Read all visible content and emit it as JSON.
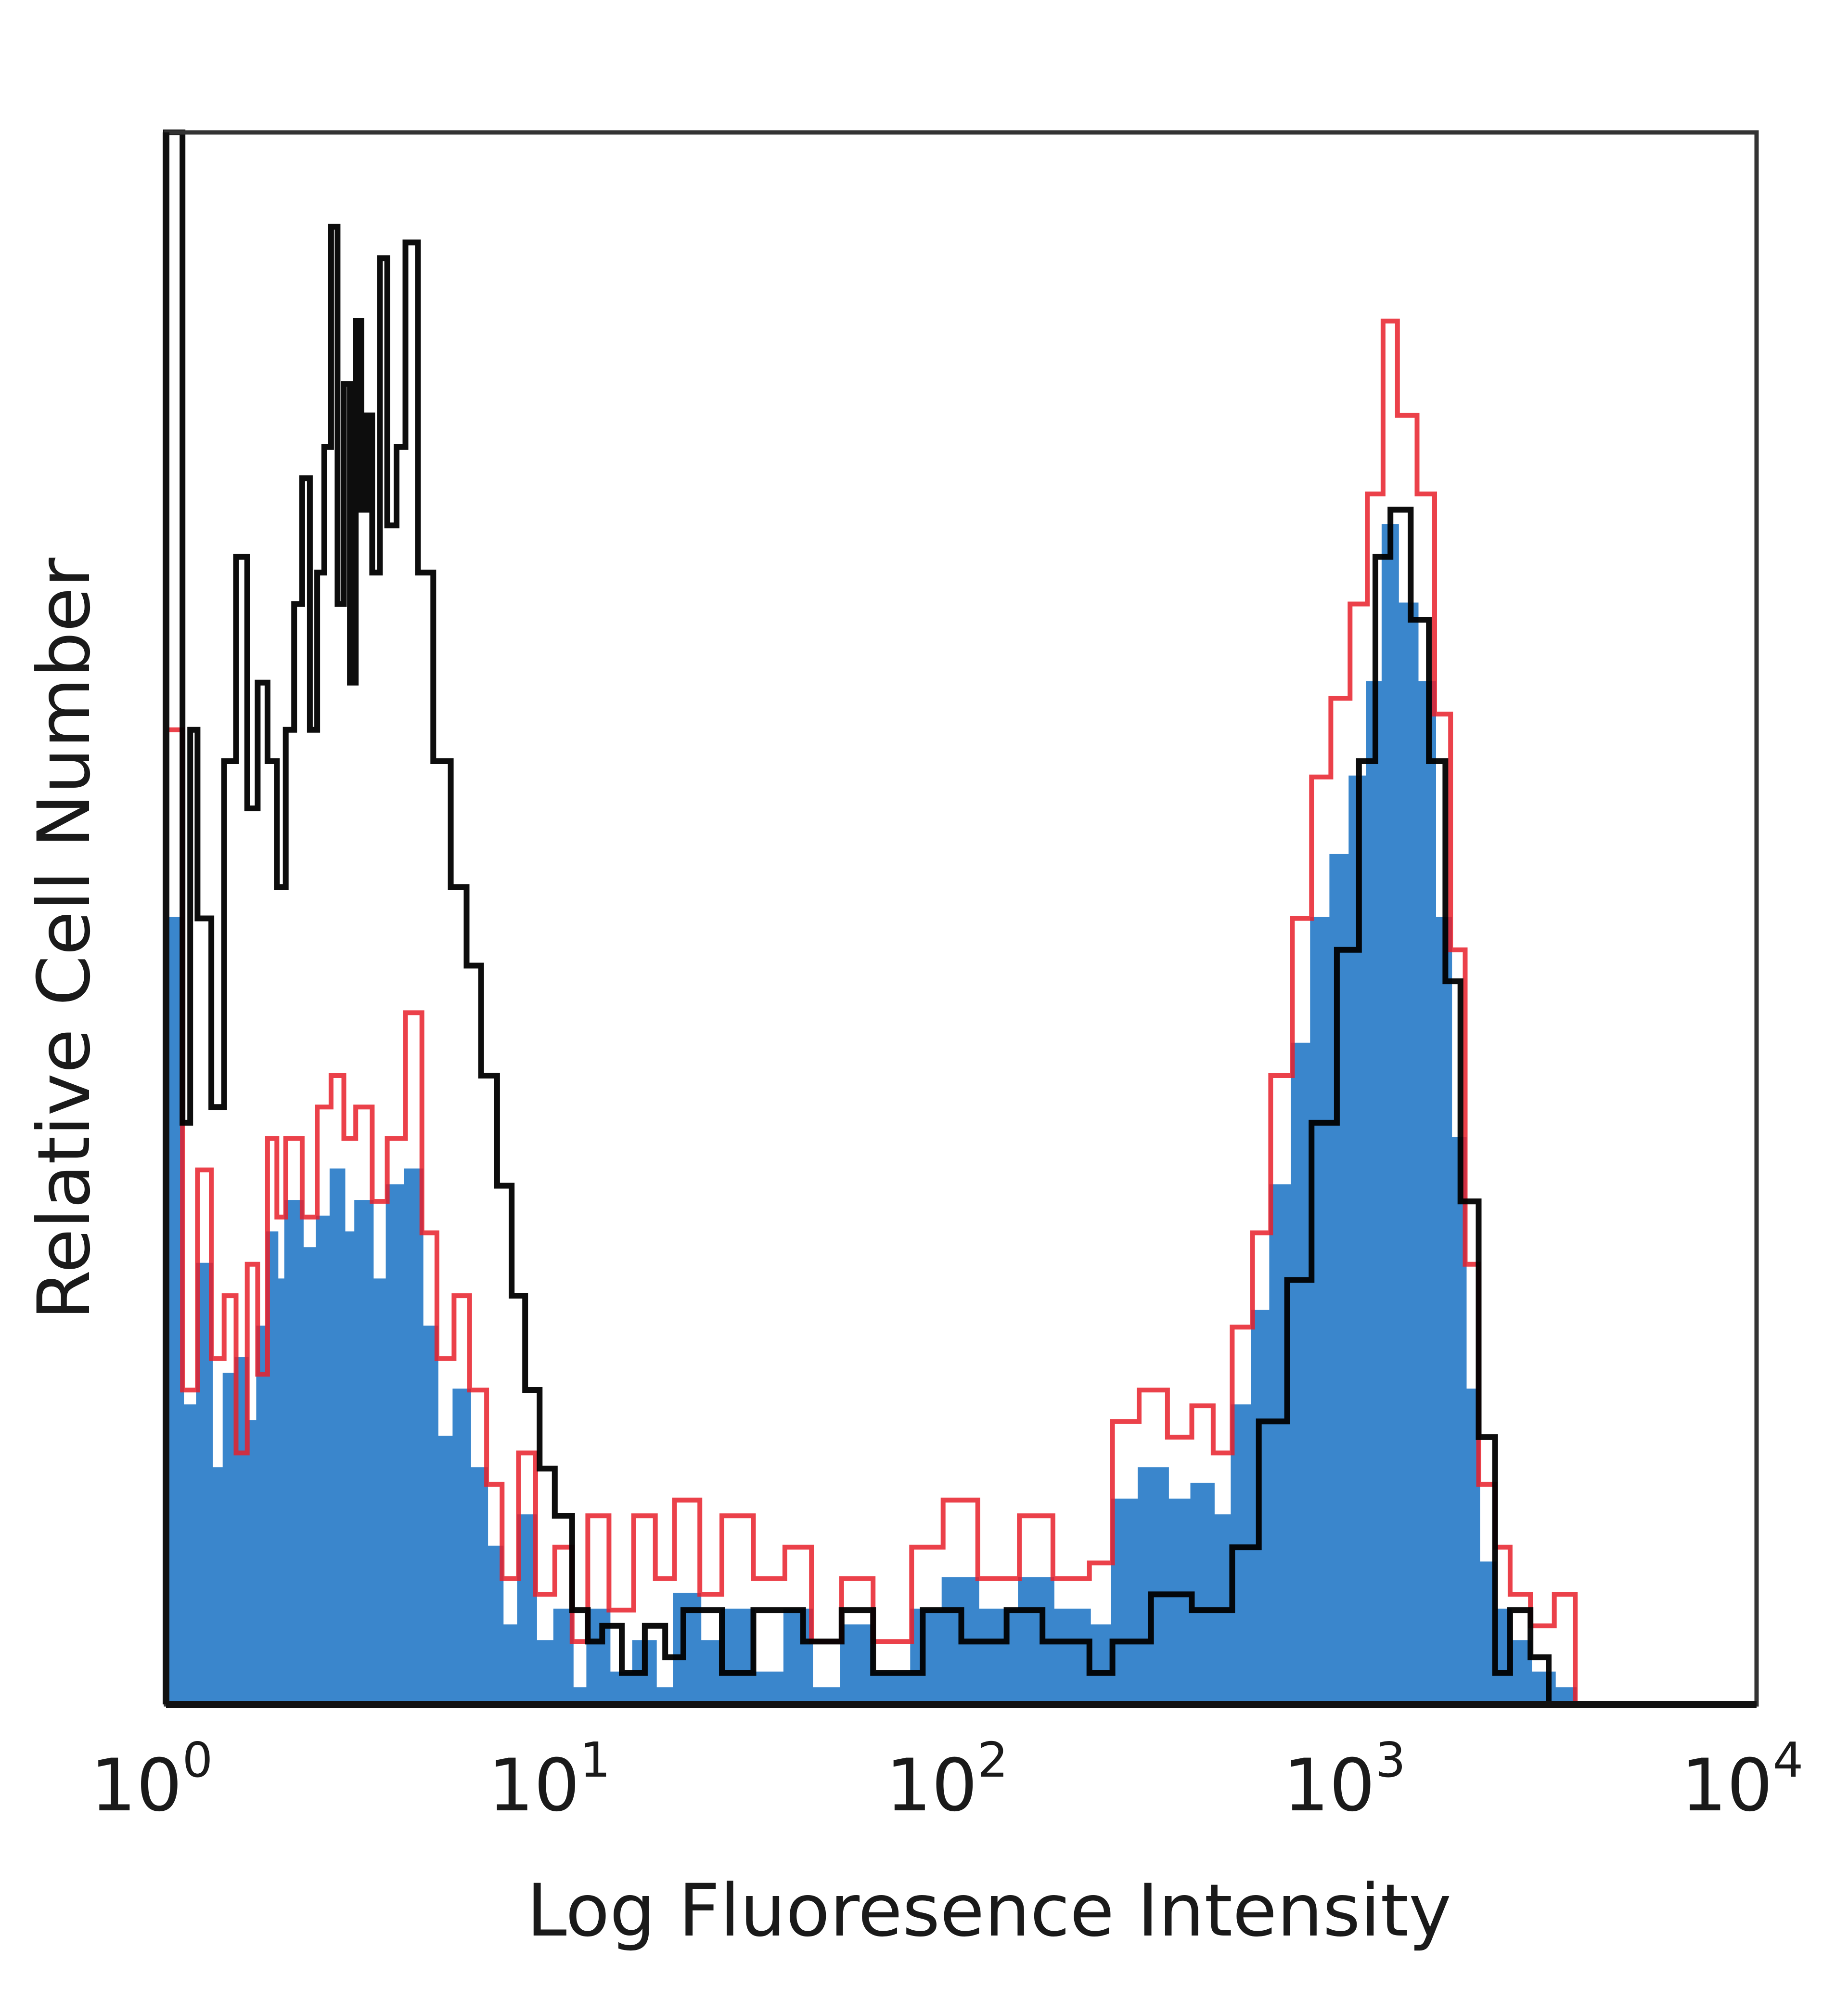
{
  "chart_data": {
    "type": "histogram",
    "xlabel": "Log Fluoresence Intensity",
    "ylabel": "Relative Cell Number",
    "x_scale": "log",
    "xlim": [
      1,
      10000
    ],
    "ylim": [
      0,
      100
    ],
    "grid": false,
    "legend": "none",
    "x_ticks": [
      {
        "value": 1,
        "base": "10",
        "exp": "0"
      },
      {
        "value": 10,
        "base": "10",
        "exp": "1"
      },
      {
        "value": 100,
        "base": "10",
        "exp": "2"
      },
      {
        "value": 1000,
        "base": "10",
        "exp": "3"
      },
      {
        "value": 10000,
        "base": "10",
        "exp": "4"
      }
    ],
    "series": [
      {
        "style": "line",
        "color": "#000000",
        "points": [
          [
            1.0,
            100
          ],
          [
            1.1,
            37
          ],
          [
            1.15,
            62
          ],
          [
            1.2,
            50
          ],
          [
            1.3,
            38
          ],
          [
            1.4,
            60
          ],
          [
            1.5,
            73
          ],
          [
            1.6,
            57
          ],
          [
            1.7,
            65
          ],
          [
            1.8,
            60
          ],
          [
            1.9,
            52
          ],
          [
            2.0,
            62
          ],
          [
            2.1,
            70
          ],
          [
            2.2,
            78
          ],
          [
            2.3,
            62
          ],
          [
            2.4,
            72
          ],
          [
            2.5,
            80
          ],
          [
            2.6,
            94
          ],
          [
            2.7,
            70
          ],
          [
            2.8,
            84
          ],
          [
            2.9,
            65
          ],
          [
            3.0,
            88
          ],
          [
            3.1,
            76
          ],
          [
            3.2,
            82
          ],
          [
            3.3,
            72
          ],
          [
            3.45,
            92
          ],
          [
            3.6,
            75
          ],
          [
            3.8,
            80
          ],
          [
            4.0,
            93
          ],
          [
            4.3,
            72
          ],
          [
            4.7,
            60
          ],
          [
            5.2,
            52
          ],
          [
            5.7,
            47
          ],
          [
            6.2,
            40
          ],
          [
            6.8,
            33
          ],
          [
            7.4,
            26
          ],
          [
            8.0,
            20
          ],
          [
            8.7,
            15
          ],
          [
            9.5,
            12
          ],
          [
            10.5,
            6
          ],
          [
            11.5,
            4
          ],
          [
            12.5,
            5
          ],
          [
            14,
            2
          ],
          [
            16,
            5
          ],
          [
            18,
            3
          ],
          [
            20,
            6
          ],
          [
            25,
            2
          ],
          [
            30,
            6
          ],
          [
            40,
            4
          ],
          [
            50,
            6
          ],
          [
            60,
            2
          ],
          [
            80,
            6
          ],
          [
            100,
            4
          ],
          [
            130,
            6
          ],
          [
            160,
            4
          ],
          [
            210,
            2
          ],
          [
            240,
            4
          ],
          [
            300,
            7
          ],
          [
            380,
            6
          ],
          [
            480,
            10
          ],
          [
            560,
            18
          ],
          [
            660,
            27
          ],
          [
            760,
            37
          ],
          [
            880,
            48
          ],
          [
            1000,
            60
          ],
          [
            1100,
            73
          ],
          [
            1200,
            76
          ],
          [
            1350,
            69
          ],
          [
            1500,
            60
          ],
          [
            1650,
            46
          ],
          [
            1800,
            32
          ],
          [
            2000,
            17
          ],
          [
            2200,
            2
          ],
          [
            2400,
            6
          ],
          [
            2700,
            3
          ],
          [
            3000,
            0
          ]
        ]
      },
      {
        "style": "line",
        "color": "#e8202a",
        "points": [
          [
            1.0,
            62
          ],
          [
            1.1,
            20
          ],
          [
            1.2,
            34
          ],
          [
            1.3,
            22
          ],
          [
            1.4,
            26
          ],
          [
            1.5,
            16
          ],
          [
            1.6,
            28
          ],
          [
            1.7,
            21
          ],
          [
            1.8,
            36
          ],
          [
            1.9,
            31
          ],
          [
            2.0,
            36
          ],
          [
            2.2,
            31
          ],
          [
            2.4,
            38
          ],
          [
            2.6,
            40
          ],
          [
            2.8,
            36
          ],
          [
            3.0,
            38
          ],
          [
            3.3,
            32
          ],
          [
            3.6,
            36
          ],
          [
            4.0,
            44
          ],
          [
            4.4,
            30
          ],
          [
            4.8,
            22
          ],
          [
            5.3,
            26
          ],
          [
            5.8,
            20
          ],
          [
            6.4,
            14
          ],
          [
            7.0,
            8
          ],
          [
            7.7,
            16
          ],
          [
            8.5,
            7
          ],
          [
            9.5,
            10
          ],
          [
            10.5,
            4
          ],
          [
            11.5,
            12
          ],
          [
            13,
            6
          ],
          [
            15,
            12
          ],
          [
            17,
            8
          ],
          [
            19,
            13
          ],
          [
            22,
            7
          ],
          [
            25,
            12
          ],
          [
            30,
            8
          ],
          [
            36,
            10
          ],
          [
            42,
            4
          ],
          [
            50,
            8
          ],
          [
            60,
            4
          ],
          [
            75,
            10
          ],
          [
            90,
            13
          ],
          [
            110,
            8
          ],
          [
            140,
            12
          ],
          [
            170,
            8
          ],
          [
            210,
            9
          ],
          [
            240,
            18
          ],
          [
            280,
            20
          ],
          [
            330,
            17
          ],
          [
            380,
            19
          ],
          [
            430,
            16
          ],
          [
            480,
            24
          ],
          [
            540,
            30
          ],
          [
            600,
            40
          ],
          [
            680,
            50
          ],
          [
            760,
            59
          ],
          [
            850,
            64
          ],
          [
            950,
            70
          ],
          [
            1050,
            77
          ],
          [
            1150,
            88
          ],
          [
            1250,
            82
          ],
          [
            1400,
            77
          ],
          [
            1550,
            63
          ],
          [
            1700,
            48
          ],
          [
            1850,
            28
          ],
          [
            2000,
            14
          ],
          [
            2200,
            10
          ],
          [
            2400,
            7
          ],
          [
            2700,
            5
          ],
          [
            3100,
            7
          ],
          [
            3500,
            0
          ]
        ]
      },
      {
        "style": "filled",
        "color": "#3a86cc",
        "points": [
          [
            1.0,
            50
          ],
          [
            1.1,
            19
          ],
          [
            1.2,
            28
          ],
          [
            1.3,
            15
          ],
          [
            1.4,
            21
          ],
          [
            1.5,
            22
          ],
          [
            1.6,
            18
          ],
          [
            1.7,
            24
          ],
          [
            1.8,
            30
          ],
          [
            1.9,
            27
          ],
          [
            2.0,
            32
          ],
          [
            2.2,
            29
          ],
          [
            2.4,
            31
          ],
          [
            2.6,
            34
          ],
          [
            2.8,
            30
          ],
          [
            3.0,
            32
          ],
          [
            3.3,
            27
          ],
          [
            3.6,
            33
          ],
          [
            4.0,
            34
          ],
          [
            4.4,
            24
          ],
          [
            4.8,
            17
          ],
          [
            5.3,
            20
          ],
          [
            5.8,
            15
          ],
          [
            6.4,
            10
          ],
          [
            7.0,
            5
          ],
          [
            7.7,
            12
          ],
          [
            8.5,
            4
          ],
          [
            9.5,
            6
          ],
          [
            10.5,
            1
          ],
          [
            11.5,
            6
          ],
          [
            13,
            2
          ],
          [
            15,
            4
          ],
          [
            17,
            1
          ],
          [
            19,
            7
          ],
          [
            22,
            4
          ],
          [
            25,
            6
          ],
          [
            30,
            2
          ],
          [
            36,
            6
          ],
          [
            42,
            1
          ],
          [
            50,
            5
          ],
          [
            60,
            2
          ],
          [
            75,
            6
          ],
          [
            90,
            8
          ],
          [
            110,
            6
          ],
          [
            140,
            8
          ],
          [
            170,
            6
          ],
          [
            210,
            5
          ],
          [
            240,
            13
          ],
          [
            280,
            15
          ],
          [
            330,
            13
          ],
          [
            380,
            14
          ],
          [
            430,
            12
          ],
          [
            480,
            19
          ],
          [
            540,
            25
          ],
          [
            600,
            33
          ],
          [
            680,
            42
          ],
          [
            760,
            50
          ],
          [
            850,
            54
          ],
          [
            950,
            59
          ],
          [
            1050,
            65
          ],
          [
            1150,
            75
          ],
          [
            1250,
            70
          ],
          [
            1400,
            65
          ],
          [
            1550,
            50
          ],
          [
            1700,
            36
          ],
          [
            1850,
            20
          ],
          [
            2000,
            9
          ],
          [
            2200,
            6
          ],
          [
            2400,
            4
          ],
          [
            2700,
            2
          ],
          [
            3100,
            1
          ],
          [
            3500,
            0
          ]
        ]
      }
    ]
  }
}
